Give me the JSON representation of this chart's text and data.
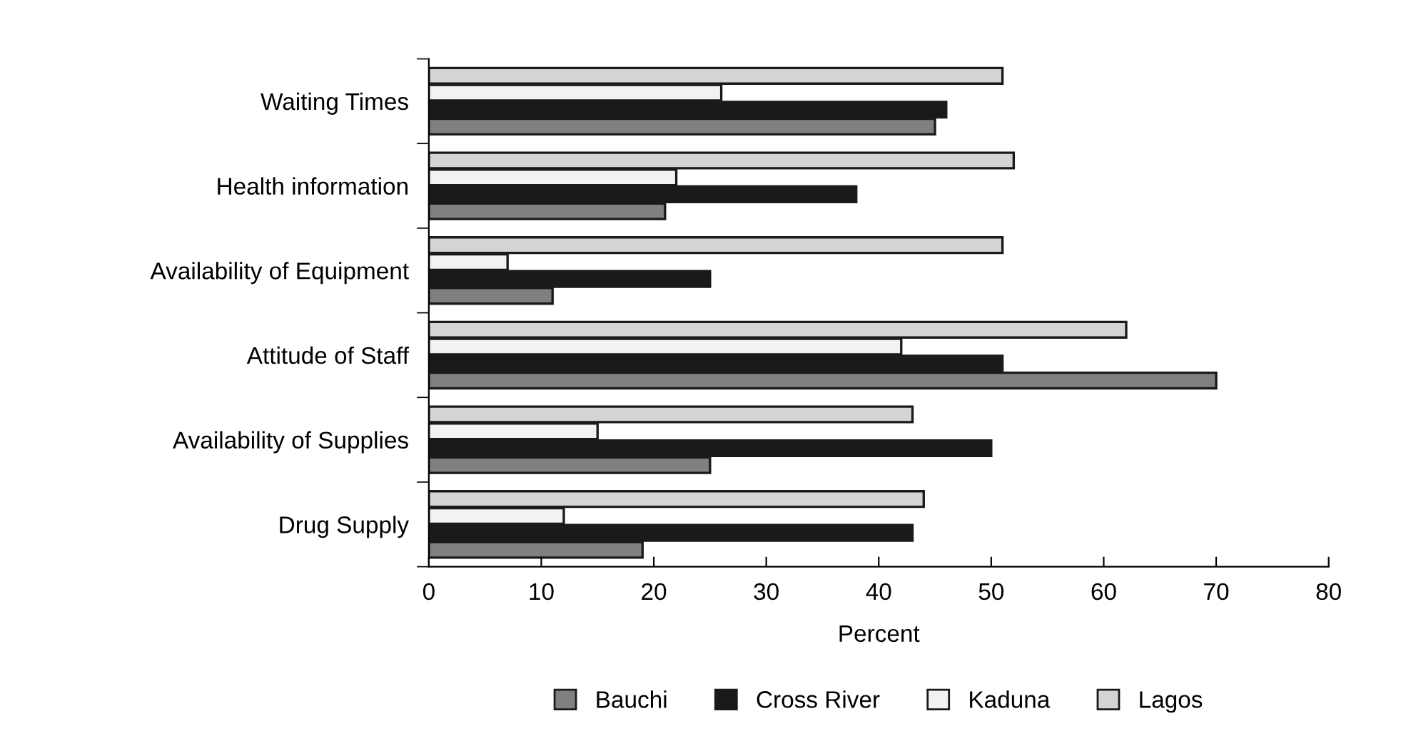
{
  "chart_data": {
    "type": "bar",
    "orientation": "horizontal",
    "xlabel": "Percent",
    "categories": [
      "Waiting Times",
      "Health information",
      "Availability of Equipment",
      "Attitude of Staff",
      "Availability of Supplies",
      "Drug Supply"
    ],
    "series": [
      {
        "name": "Bauchi",
        "color": "#808080",
        "values": [
          45,
          21,
          11,
          70,
          25,
          19
        ]
      },
      {
        "name": "Cross River",
        "color": "#1a1a1a",
        "values": [
          46,
          38,
          25,
          51,
          50,
          43
        ]
      },
      {
        "name": "Kaduna",
        "color": "#f2f2f2",
        "values": [
          26,
          22,
          7,
          42,
          15,
          12
        ]
      },
      {
        "name": "Lagos",
        "color": "#d4d4d4",
        "values": [
          51,
          52,
          51,
          62,
          43,
          44
        ]
      }
    ],
    "xlim": [
      0,
      80
    ],
    "xticks": [
      0,
      10,
      20,
      30,
      40,
      50,
      60,
      70,
      80
    ],
    "grid": false,
    "legend": "bottom"
  }
}
